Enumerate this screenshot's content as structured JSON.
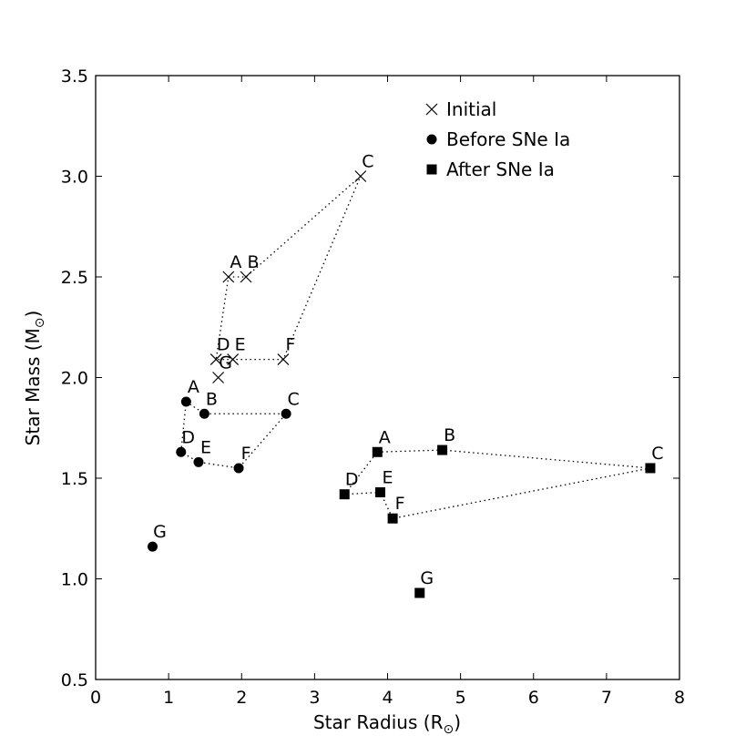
{
  "chart_data": {
    "type": "scatter",
    "xlabel": "Star Radius (R",
    "xlabel_sub": "⊙",
    "xlabel_end": ")",
    "ylabel": "Star Mass (M",
    "ylabel_sub": "⊙",
    "ylabel_end": ")",
    "xlim": [
      0,
      8
    ],
    "ylim": [
      0.5,
      3.5
    ],
    "xticks": [
      "0",
      "1",
      "2",
      "3",
      "4",
      "5",
      "6",
      "7",
      "8"
    ],
    "yticks": [
      "0.5",
      "1.0",
      "1.5",
      "2.0",
      "2.5",
      "3.0",
      "3.5"
    ],
    "grid": false,
    "legend_position": "top-right",
    "series": [
      {
        "name": "Initial",
        "marker": "x",
        "color": "#000000",
        "points": [
          {
            "label": "A",
            "x": 1.82,
            "y": 2.5
          },
          {
            "label": "B",
            "x": 2.06,
            "y": 2.5
          },
          {
            "label": "C",
            "x": 3.63,
            "y": 3.0
          },
          {
            "label": "D",
            "x": 1.65,
            "y": 2.09
          },
          {
            "label": "E",
            "x": 1.88,
            "y": 2.09
          },
          {
            "label": "F",
            "x": 2.57,
            "y": 2.09
          },
          {
            "label": "G",
            "x": 1.68,
            "y": 2.0
          }
        ],
        "path": [
          "A",
          "B",
          "C",
          "F",
          "E",
          "D",
          "A"
        ]
      },
      {
        "name": "Before SNe Ia",
        "marker": "circle",
        "color": "#000000",
        "points": [
          {
            "label": "A",
            "x": 1.24,
            "y": 1.88
          },
          {
            "label": "B",
            "x": 1.49,
            "y": 1.82
          },
          {
            "label": "C",
            "x": 2.61,
            "y": 1.82
          },
          {
            "label": "D",
            "x": 1.17,
            "y": 1.63
          },
          {
            "label": "E",
            "x": 1.41,
            "y": 1.58
          },
          {
            "label": "F",
            "x": 1.96,
            "y": 1.55
          },
          {
            "label": "G",
            "x": 0.78,
            "y": 1.16
          }
        ],
        "path": [
          "A",
          "B",
          "C",
          "F",
          "E",
          "D",
          "A"
        ]
      },
      {
        "name": "After SNe Ia",
        "marker": "square",
        "color": "#000000",
        "points": [
          {
            "label": "A",
            "x": 3.86,
            "y": 1.63
          },
          {
            "label": "B",
            "x": 4.75,
            "y": 1.64
          },
          {
            "label": "C",
            "x": 7.6,
            "y": 1.55
          },
          {
            "label": "D",
            "x": 3.41,
            "y": 1.42
          },
          {
            "label": "E",
            "x": 3.9,
            "y": 1.43
          },
          {
            "label": "F",
            "x": 4.07,
            "y": 1.3
          },
          {
            "label": "G",
            "x": 4.44,
            "y": 0.93
          }
        ],
        "path": [
          "A",
          "B",
          "C",
          "F",
          "E",
          "D",
          "A"
        ]
      }
    ]
  }
}
